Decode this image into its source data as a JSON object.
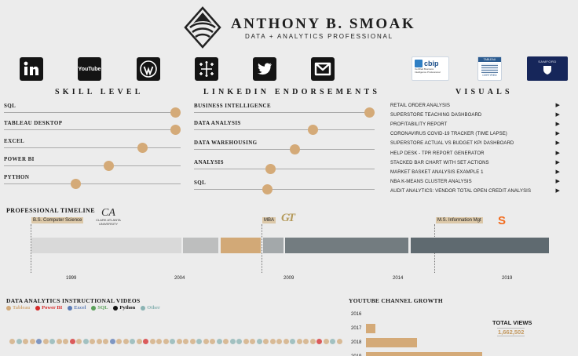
{
  "header": {
    "name": "Anthony B. Smoak",
    "name_display": "ANTHONY B. SMOAK",
    "tagline": "DATA + ANALYTICS PROFESSIONAL"
  },
  "social_icons": [
    "linkedin-icon",
    "youtube-icon",
    "wordpress-icon",
    "tableau-icon",
    "twitter-icon",
    "gmail-icon"
  ],
  "youtube_icon_text": "YouTube",
  "badges": {
    "cbip": {
      "title": "cbip",
      "sub": "Certified Business Intelligence Professional"
    },
    "tableau": {
      "title": "TABLEAU",
      "sub": "CERTIFIED"
    },
    "university": {
      "title": "SAMFORD"
    }
  },
  "skill_level": {
    "heading": "SKILL LEVEL",
    "items": [
      {
        "label": "SQL",
        "level": 1.0
      },
      {
        "label": "TABLEAU DESKTOP",
        "level": 1.0
      },
      {
        "label": "EXCEL",
        "level": 0.8
      },
      {
        "label": "POWER BI",
        "level": 0.6
      },
      {
        "label": "PYTHON",
        "level": 0.4
      }
    ]
  },
  "endorsements": {
    "heading": "LINKEDIN ENDORSEMENTS",
    "items": [
      {
        "label": "BUSINESS INTELLIGENCE",
        "level": 1.0
      },
      {
        "label": "DATA ANALYSIS",
        "level": 0.67
      },
      {
        "label": "DATA WAREHOUSING",
        "level": 0.56
      },
      {
        "label": "ANALYSIS",
        "level": 0.42
      },
      {
        "label": "SQL",
        "level": 0.4
      }
    ]
  },
  "visuals": {
    "heading": "VISUALS",
    "items": [
      "RETAIL ORDER ANALYSIS",
      "SUPERSTORE TEACHING DASHBOARD",
      "PROFITABILITY REPORT",
      "CORONAVIRUS COVID-19 TRACKER (TIME LAPSE)",
      "SUPERSTORE ACTUAL VS BUDGET KPI DASHBOARD",
      "HELP DESK - TPR REPORT GENERATOR",
      "STACKED BAR CHART WITH SET ACTIONS",
      "MARKET BASKET ANALYSIS EXAMPLE 1",
      "NBA K-MEANS CLUSTER ANALYSIS",
      "AUDIT ANALYTICS: VENDOR TOTAL OPEN CREDIT ANALYSIS"
    ],
    "arrow": "▶"
  },
  "timeline": {
    "heading": "PROFESSIONAL TIMELINE",
    "tags": [
      "B.S. Computer Science",
      "MBA",
      "M.S. Information Mgt"
    ],
    "logos": {
      "clark_atlanta": "CLARK ATLANTA UNIVERSITY",
      "clark_atlanta_mark": "CA",
      "georgia_tech": "GT",
      "syracuse": "S"
    },
    "years": [
      "1999",
      "2004",
      "2009",
      "2014",
      "2019"
    ],
    "segments": [
      {
        "color": "#d9d9d9"
      },
      {
        "color": "#bdbebe"
      },
      {
        "color": "#d2a977"
      },
      {
        "color": "#a3a8aa"
      },
      {
        "color": "#737c80"
      },
      {
        "color": "#5f6a70"
      }
    ]
  },
  "videos": {
    "heading": "DATA ANALYTICS INSTRUCTIONAL VIDEOS",
    "legend": [
      {
        "label": "Tableau",
        "color": "#d2aa7a"
      },
      {
        "label": "Power BI",
        "color": "#d62b2b"
      },
      {
        "label": "Excel",
        "color": "#5b7bb5"
      },
      {
        "label": "SQL",
        "color": "#5aa05a"
      },
      {
        "label": "Python",
        "color": "#111111"
      },
      {
        "label": "Other",
        "color": "#8ab3b3"
      }
    ]
  },
  "youtube_growth": {
    "heading": "YOUTUBE CHANNEL GROWTH",
    "total_label": "TOTAL VIEWS",
    "total_value": "1,662,502",
    "chart_data": {
      "type": "bar",
      "categories": [
        "2016",
        "2017",
        "2018",
        "2019"
      ],
      "values": [
        0,
        0.08,
        0.44,
        1.0
      ]
    }
  }
}
